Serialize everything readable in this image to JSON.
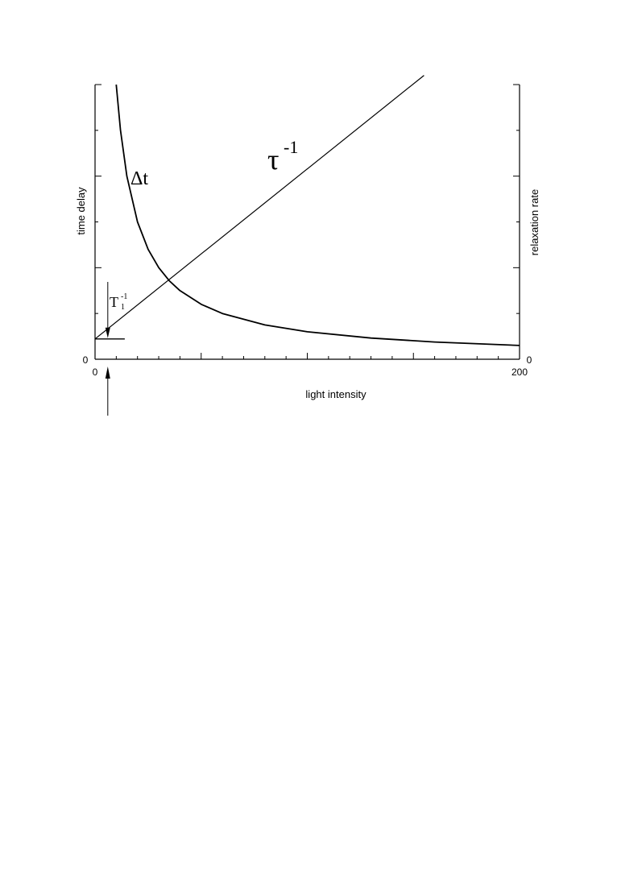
{
  "chart_data": {
    "type": "line",
    "xlabel": "light intensity",
    "ylabel_left": "time delay",
    "ylabel_right": "relaxation rate",
    "xlim": [
      0,
      200
    ],
    "x_ticks": [
      {
        "value": 0,
        "label": "0"
      },
      {
        "value": 200,
        "label": "200"
      }
    ],
    "y_left_ticks": [
      {
        "value": 0,
        "label": "0"
      }
    ],
    "y_right_ticks": [
      {
        "value": 0,
        "label": "0"
      }
    ],
    "series": [
      {
        "name": "Δt",
        "axis": "left",
        "x": [
          10,
          12,
          15,
          20,
          25,
          30,
          35,
          40,
          50,
          60,
          80,
          100,
          130,
          160,
          200
        ],
        "y": [
          3.0,
          2.5,
          2.0,
          1.5,
          1.2,
          1.0,
          0.857,
          0.75,
          0.6,
          0.5,
          0.375,
          0.3,
          0.231,
          0.188,
          0.15
        ]
      },
      {
        "name": "τ⁻¹",
        "axis": "right",
        "x": [
          0,
          155
        ],
        "y": [
          0.222,
          3.1
        ]
      }
    ],
    "annotations": {
      "baseline_label": "T",
      "baseline_sub": "1",
      "baseline_sup": "-1",
      "delta_t_label": "Δt",
      "tau_label": "τ",
      "tau_sup": "-1"
    }
  }
}
